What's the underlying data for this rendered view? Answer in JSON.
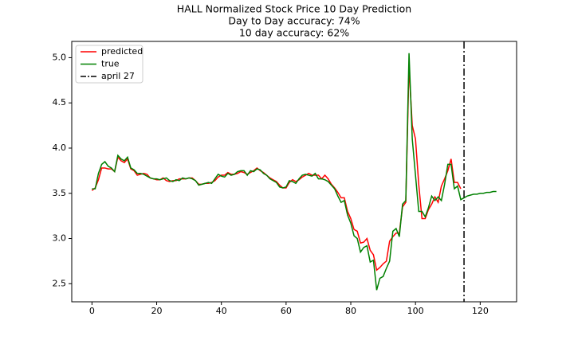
{
  "chart_data": {
    "type": "line",
    "title": [
      "HALL Normalized Stock Price 10 Day Prediction",
      "Day to Day accuracy: 74%",
      "10 day accuracy: 62%"
    ],
    "x": [
      0,
      1,
      2,
      3,
      4,
      5,
      6,
      7,
      8,
      9,
      10,
      11,
      12,
      13,
      14,
      15,
      16,
      17,
      18,
      19,
      20,
      21,
      22,
      23,
      24,
      25,
      26,
      27,
      28,
      29,
      30,
      31,
      32,
      33,
      34,
      35,
      36,
      37,
      38,
      39,
      40,
      41,
      42,
      43,
      44,
      45,
      46,
      47,
      48,
      49,
      50,
      51,
      52,
      53,
      54,
      55,
      56,
      57,
      58,
      59,
      60,
      61,
      62,
      63,
      64,
      65,
      66,
      67,
      68,
      69,
      70,
      71,
      72,
      73,
      74,
      75,
      76,
      77,
      78,
      79,
      80,
      81,
      82,
      83,
      84,
      85,
      86,
      87,
      88,
      89,
      90,
      91,
      92,
      93,
      94,
      95,
      96,
      97,
      98,
      99,
      100,
      101,
      102,
      103,
      104,
      105,
      106,
      107,
      108,
      109,
      110,
      111,
      112,
      113,
      114,
      115,
      116,
      117,
      118,
      119,
      120,
      121,
      122,
      123,
      124,
      125
    ],
    "series": [
      {
        "name": "predicted",
        "color": "#ff0000",
        "values": [
          3.53,
          3.56,
          3.65,
          3.78,
          3.78,
          3.77,
          3.77,
          3.74,
          3.9,
          3.86,
          3.84,
          3.88,
          3.77,
          3.75,
          3.7,
          3.71,
          3.72,
          3.71,
          3.67,
          3.66,
          3.65,
          3.65,
          3.67,
          3.64,
          3.63,
          3.64,
          3.64,
          3.66,
          3.66,
          3.66,
          3.67,
          3.67,
          3.64,
          3.6,
          3.6,
          3.61,
          3.61,
          3.62,
          3.64,
          3.68,
          3.7,
          3.7,
          3.73,
          3.71,
          3.71,
          3.72,
          3.74,
          3.73,
          3.71,
          3.73,
          3.75,
          3.78,
          3.75,
          3.73,
          3.7,
          3.67,
          3.65,
          3.63,
          3.59,
          3.56,
          3.56,
          3.62,
          3.65,
          3.63,
          3.65,
          3.68,
          3.7,
          3.72,
          3.7,
          3.7,
          3.7,
          3.66,
          3.7,
          3.66,
          3.6,
          3.56,
          3.51,
          3.45,
          3.45,
          3.3,
          3.22,
          3.1,
          3.08,
          2.95,
          2.96,
          3.0,
          2.87,
          2.82,
          2.65,
          2.68,
          2.72,
          2.75,
          2.97,
          3.02,
          3.06,
          3.06,
          3.35,
          3.4,
          4.9,
          4.25,
          4.1,
          3.6,
          3.22,
          3.22,
          3.32,
          3.38,
          3.46,
          3.4,
          3.58,
          3.66,
          3.75,
          3.88,
          3.62,
          3.62,
          3.55,
          null,
          null,
          null,
          null,
          null,
          null,
          null,
          null,
          null,
          null,
          null
        ]
      },
      {
        "name": "true",
        "color": "#008000",
        "values": [
          3.55,
          3.55,
          3.72,
          3.82,
          3.85,
          3.8,
          3.78,
          3.74,
          3.92,
          3.88,
          3.86,
          3.9,
          3.78,
          3.76,
          3.72,
          3.72,
          3.71,
          3.69,
          3.67,
          3.66,
          3.66,
          3.65,
          3.66,
          3.67,
          3.64,
          3.63,
          3.65,
          3.64,
          3.67,
          3.66,
          3.67,
          3.66,
          3.64,
          3.59,
          3.6,
          3.61,
          3.62,
          3.61,
          3.66,
          3.71,
          3.69,
          3.68,
          3.72,
          3.7,
          3.71,
          3.74,
          3.75,
          3.75,
          3.7,
          3.75,
          3.74,
          3.77,
          3.76,
          3.72,
          3.7,
          3.66,
          3.64,
          3.62,
          3.57,
          3.56,
          3.57,
          3.64,
          3.63,
          3.61,
          3.66,
          3.7,
          3.71,
          3.7,
          3.69,
          3.72,
          3.66,
          3.66,
          3.65,
          3.63,
          3.59,
          3.55,
          3.47,
          3.4,
          3.42,
          3.26,
          3.17,
          3.03,
          3.0,
          2.85,
          2.9,
          2.92,
          2.74,
          2.76,
          2.43,
          2.56,
          2.58,
          2.67,
          2.75,
          3.08,
          3.11,
          3.02,
          3.38,
          3.42,
          5.05,
          4.1,
          3.7,
          3.3,
          3.3,
          3.24,
          3.34,
          3.47,
          3.42,
          3.46,
          3.42,
          3.6,
          3.82,
          3.82,
          3.55,
          3.58,
          3.43,
          3.45,
          3.47,
          3.48,
          3.49,
          3.49,
          3.5,
          3.5,
          3.51,
          3.51,
          3.52,
          3.52
        ]
      }
    ],
    "vline": {
      "name": "april 27",
      "x": 115,
      "color": "#000000"
    },
    "xlim": [
      -6.25,
      131.25
    ],
    "xticks": [
      0,
      20,
      40,
      60,
      80,
      100,
      120
    ],
    "ylim": [
      2.3,
      5.18
    ],
    "yticks": [
      {
        "value": 2.5,
        "label": "2.5"
      },
      {
        "value": 3.0,
        "label": "3.0"
      },
      {
        "value": 3.5,
        "label": "3.5"
      },
      {
        "value": 4.0,
        "label": "4.0"
      },
      {
        "value": 4.5,
        "label": "4.5"
      },
      {
        "value": 5.0,
        "label": "5.0"
      }
    ],
    "grid": false,
    "legend": "upper left"
  }
}
